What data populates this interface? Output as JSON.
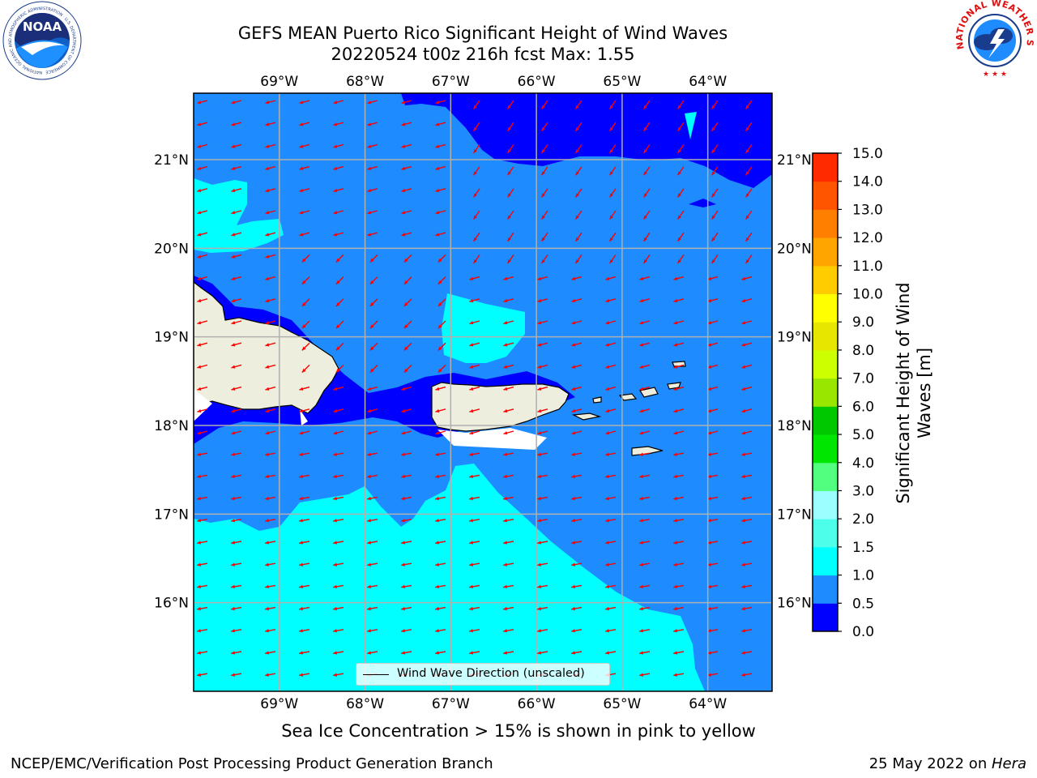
{
  "header": {
    "title_line1": "GEFS MEAN Puerto Rico Significant Height of Wind Waves",
    "title_line2": "20220524 t00z 216h fcst   Max: 1.55"
  },
  "logos": {
    "noaa": {
      "label": "NOAA",
      "ring_text": "NATIONAL OCEANIC AND ATMOSPHERIC ADMINISTRATION · U.S. DEPARTMENT OF COMMERCE"
    },
    "nws": {
      "ring_text": "NATIONAL WEATHER SERVICE"
    }
  },
  "map": {
    "lon_range": [
      -70.0,
      -63.25
    ],
    "lat_range": [
      15.0,
      21.75
    ],
    "lon_ticks": [
      "69°W",
      "68°W",
      "67°W",
      "66°W",
      "65°W",
      "64°W"
    ],
    "lon_tick_values": [
      -69,
      -68,
      -67,
      -66,
      -65,
      -64
    ],
    "lat_ticks": [
      "16°N",
      "17°N",
      "18°N",
      "19°N",
      "20°N",
      "21°N"
    ],
    "lat_tick_values": [
      16,
      17,
      18,
      19,
      20,
      21
    ],
    "gridlines": true,
    "arrow_color": "#ff0000",
    "land_color": "#eeeedf",
    "legend_label": "Wind Wave Direction (unscaled)",
    "legend_location": "lower-center"
  },
  "colorbar": {
    "label_line1": "Significant Height of Wind",
    "label_line2": "Waves [m]",
    "tick_labels": [
      "0.0",
      "0.5",
      "1.0",
      "1.5",
      "2.0",
      "3.0",
      "4.0",
      "5.0",
      "6.0",
      "7.0",
      "8.0",
      "9.0",
      "10.0",
      "11.0",
      "12.0",
      "13.0",
      "14.0",
      "15.0"
    ],
    "colors": [
      "#0000ff",
      "#1e8cff",
      "#00ffff",
      "#4dffeb",
      "#9bffff",
      "#52ff7f",
      "#00e600",
      "#00c800",
      "#99e600",
      "#ccff00",
      "#e6e600",
      "#ffff00",
      "#ffcc00",
      "#ffa500",
      "#ff8000",
      "#ff5500",
      "#ff2a00",
      "#ff0000"
    ]
  },
  "footer": {
    "sea_ice_note": "Sea Ice Concentration > 15% is shown in pink to yellow",
    "branch": "NCEP/EMC/Verification Post Processing Product Generation Branch",
    "date": "25 May 2022 on ",
    "host": "Hera"
  }
}
